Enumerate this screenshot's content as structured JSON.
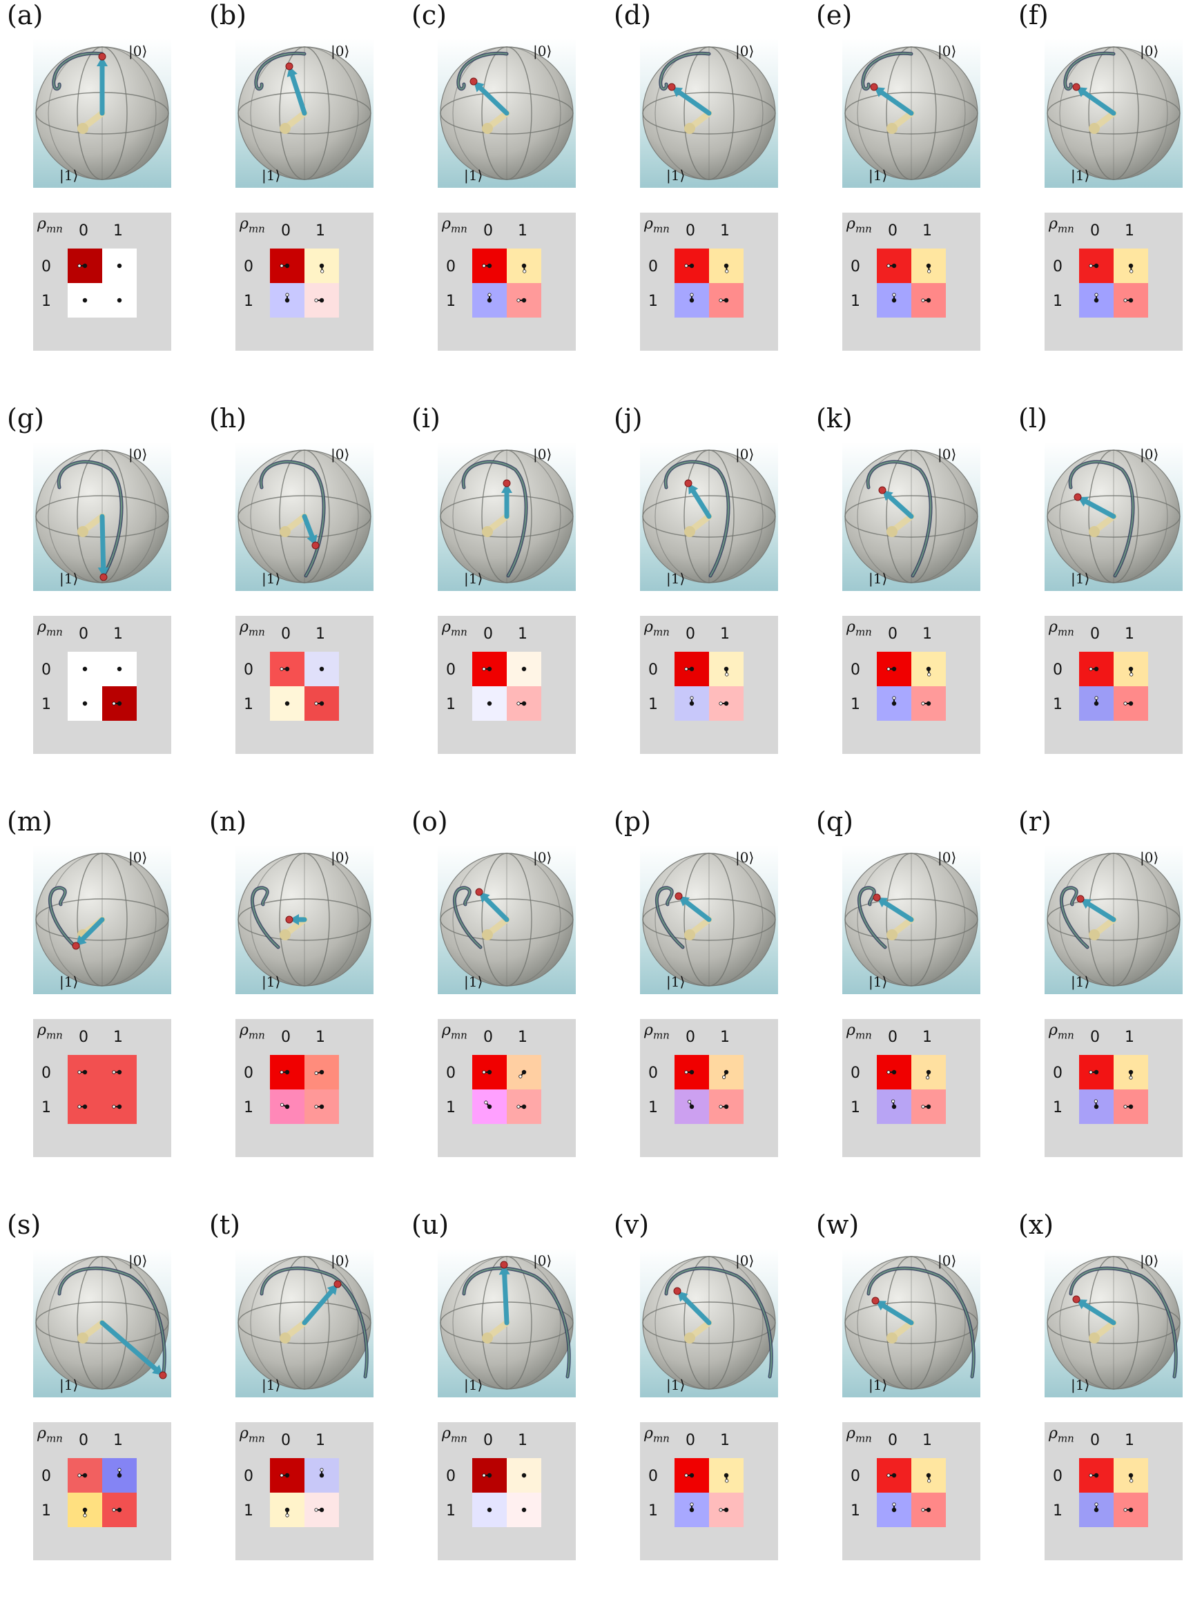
{
  "ket_top": "|0⟩",
  "ket_bottom": "|1⟩",
  "matrix": {
    "symbol": "ρ",
    "subscript": "mn",
    "col_labels": [
      "0",
      "1"
    ],
    "row_labels": [
      "0",
      "1"
    ]
  },
  "panels": [
    {
      "label": "(a)",
      "cells": [
        "#b80000",
        "#ffffff",
        "#ffffff",
        "#ffffff"
      ],
      "phases": [
        0,
        -1,
        -1,
        -1
      ]
    },
    {
      "label": "(b)",
      "cells": [
        "#c80000",
        "#fff3c6",
        "#c8c8ff",
        "#fde0e0"
      ],
      "phases": [
        0,
        95,
        270,
        0
      ]
    },
    {
      "label": "(c)",
      "cells": [
        "#ee0000",
        "#ffe8a6",
        "#a8a8ff",
        "#ff9a9a"
      ],
      "phases": [
        0,
        95,
        270,
        0
      ]
    },
    {
      "label": "(d)",
      "cells": [
        "#f21212",
        "#ffe6a0",
        "#a6a6ff",
        "#ff8c8c"
      ],
      "phases": [
        0,
        95,
        270,
        0
      ]
    },
    {
      "label": "(e)",
      "cells": [
        "#f22020",
        "#ffe6a0",
        "#a4a4ff",
        "#ff8888"
      ],
      "phases": [
        0,
        95,
        270,
        0
      ]
    },
    {
      "label": "(f)",
      "cells": [
        "#f22020",
        "#ffe6a0",
        "#a0a0ff",
        "#ff8888"
      ],
      "phases": [
        0,
        95,
        270,
        0
      ]
    },
    {
      "label": "(g)",
      "cells": [
        "#ffffff",
        "#ffffff",
        "#ffffff",
        "#b80000"
      ],
      "phases": [
        -1,
        -1,
        -1,
        0
      ]
    },
    {
      "label": "(h)",
      "cells": [
        "#f65050",
        "#e0e0fa",
        "#fff6d8",
        "#f04a4a"
      ],
      "phases": [
        0,
        -1,
        -1,
        0
      ]
    },
    {
      "label": "(i)",
      "cells": [
        "#f00000",
        "#fff5e6",
        "#f0f0ff",
        "#ffb8b8"
      ],
      "phases": [
        0,
        -1,
        -1,
        0
      ]
    },
    {
      "label": "(j)",
      "cells": [
        "#e80000",
        "#fff0c0",
        "#c8c8fa",
        "#ffbcbc"
      ],
      "phases": [
        0,
        95,
        270,
        0
      ]
    },
    {
      "label": "(k)",
      "cells": [
        "#f00000",
        "#ffeaa8",
        "#a8a8ff",
        "#ff9a9a"
      ],
      "phases": [
        0,
        95,
        270,
        0
      ]
    },
    {
      "label": "(l)",
      "cells": [
        "#f21616",
        "#ffe4a0",
        "#9c9cf6",
        "#ff8a8a"
      ],
      "phases": [
        0,
        95,
        270,
        0
      ]
    },
    {
      "label": "(m)",
      "cells": [
        "#f25050",
        "#f25050",
        "#f25050",
        "#f25050"
      ],
      "phases": [
        0,
        0,
        0,
        0
      ]
    },
    {
      "label": "(n)",
      "cells": [
        "#f00000",
        "#ff8c7c",
        "#ff88b8",
        "#ff9898"
      ],
      "phases": [
        0,
        10,
        340,
        0
      ]
    },
    {
      "label": "(o)",
      "cells": [
        "#f00000",
        "#ffcfa2",
        "#ffa0ff",
        "#ffa8a8"
      ],
      "phases": [
        0,
        50,
        310,
        0
      ]
    },
    {
      "label": "(p)",
      "cells": [
        "#f00000",
        "#ffd8a0",
        "#cca0f0",
        "#ff9c9c"
      ],
      "phases": [
        0,
        65,
        295,
        0
      ]
    },
    {
      "label": "(q)",
      "cells": [
        "#f00000",
        "#ffe0a0",
        "#b8a4f4",
        "#ff9898"
      ],
      "phases": [
        0,
        80,
        280,
        0
      ]
    },
    {
      "label": "(r)",
      "cells": [
        "#f21414",
        "#ffe4a0",
        "#a8a0f8",
        "#ff8e8e"
      ],
      "phases": [
        0,
        90,
        275,
        0
      ]
    },
    {
      "label": "(s)",
      "cells": [
        "#f26060",
        "#8484f4",
        "#ffe080",
        "#f25050"
      ],
      "phases": [
        0,
        270,
        90,
        0
      ]
    },
    {
      "label": "(t)",
      "cells": [
        "#c40000",
        "#c8c8f8",
        "#fff3ca",
        "#fde6e6"
      ],
      "phases": [
        0,
        270,
        90,
        0
      ]
    },
    {
      "label": "(u)",
      "cells": [
        "#b80000",
        "#fff3da",
        "#e4e4ff",
        "#fff0f0"
      ],
      "phases": [
        0,
        -1,
        -1,
        -1
      ]
    },
    {
      "label": "(v)",
      "cells": [
        "#f00000",
        "#ffeaa8",
        "#a8a8ff",
        "#ffbcbc"
      ],
      "phases": [
        0,
        95,
        270,
        0
      ]
    },
    {
      "label": "(w)",
      "cells": [
        "#f22020",
        "#ffe6a0",
        "#a4a4ff",
        "#ff8888"
      ],
      "phases": [
        0,
        95,
        270,
        0
      ]
    },
    {
      "label": "(x)",
      "cells": [
        "#f22020",
        "#ffe4a0",
        "#9c9cf6",
        "#ff8888"
      ],
      "phases": [
        0,
        95,
        270,
        0
      ]
    }
  ]
}
